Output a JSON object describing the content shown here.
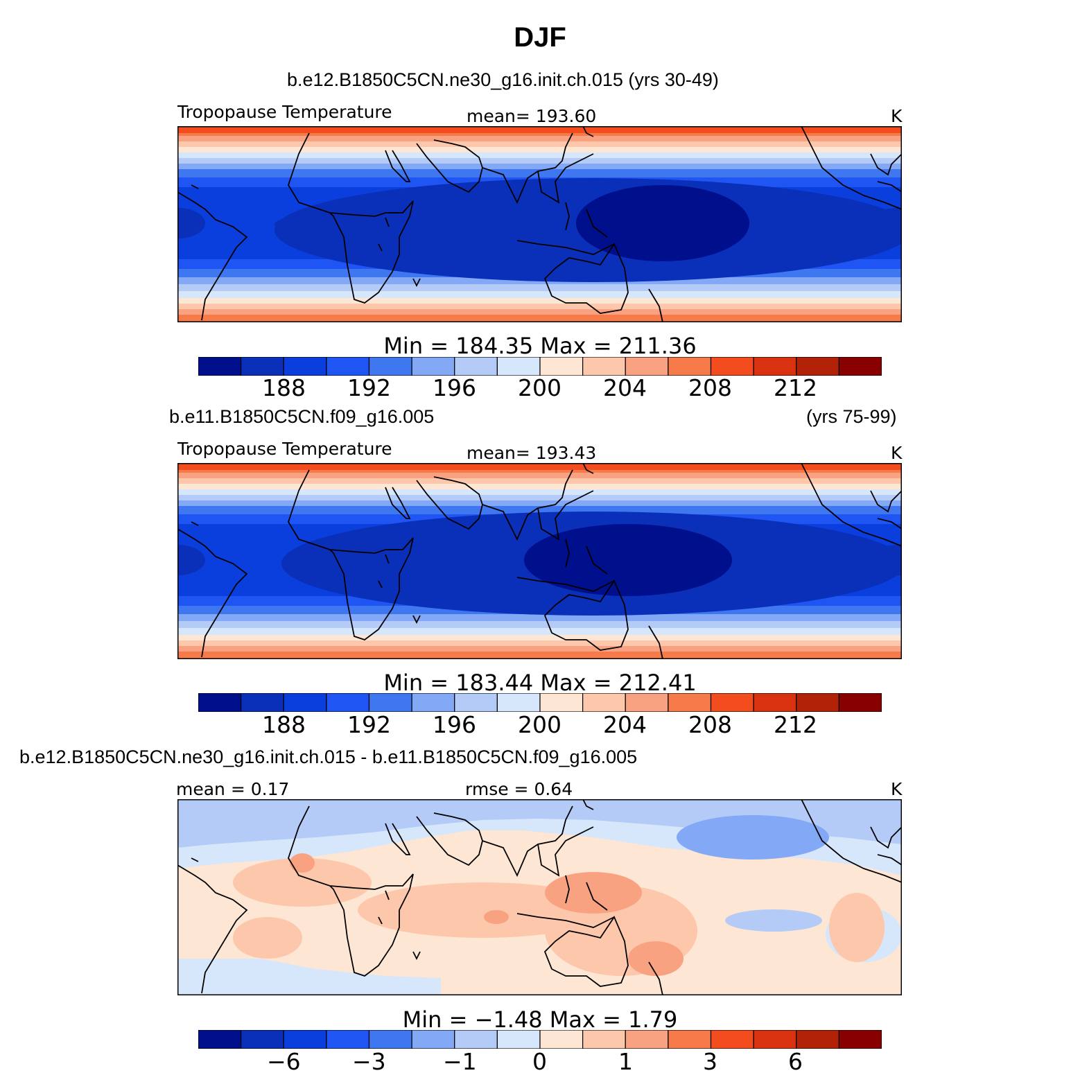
{
  "title": "DJF",
  "panels": [
    {
      "case": "b.e12.B1850C5CN.ne30_g16.init.ch.015 (yrs 30-49)",
      "years": "",
      "left_label": "Tropopause Temperature",
      "center_label": "mean=  193.60",
      "right_label": "K",
      "min_max": "Min  =  184.35  Max  =  211.36",
      "levels": [
        "188",
        "192",
        "196",
        "200",
        "204",
        "208",
        "212"
      ]
    },
    {
      "case": "b.e11.B1850C5CN.f09_g16.005",
      "years": "(yrs 75-99)",
      "left_label": "Tropopause Temperature",
      "center_label": "mean=  193.43",
      "right_label": "K",
      "min_max": "Min  =  183.44  Max  =  212.41",
      "levels": [
        "188",
        "192",
        "196",
        "200",
        "204",
        "208",
        "212"
      ]
    },
    {
      "case": "b.e12.B1850C5CN.ne30_g16.init.ch.015 - b.e11.B1850C5CN.f09_g16.005",
      "years": "",
      "left_label": "mean =    0.17",
      "center_label": "rmse =    0.64",
      "right_label": "K",
      "min_max": "Min  =   −1.48  Max  =    1.79",
      "levels": [
        "−6",
        "−3",
        "−1",
        "0",
        "1",
        "3",
        "6"
      ]
    }
  ],
  "colorbar_colors": [
    "#000f8c",
    "#0a2fb9",
    "#0a3fdd",
    "#1f55f2",
    "#3f77f0",
    "#83a8f5",
    "#b3cbf6",
    "#d6e6fb",
    "#fde6d3",
    "#fcc7ab",
    "#f9a282",
    "#f77a4a",
    "#f24c1f",
    "#d83210",
    "#b22209",
    "#880000"
  ]
}
